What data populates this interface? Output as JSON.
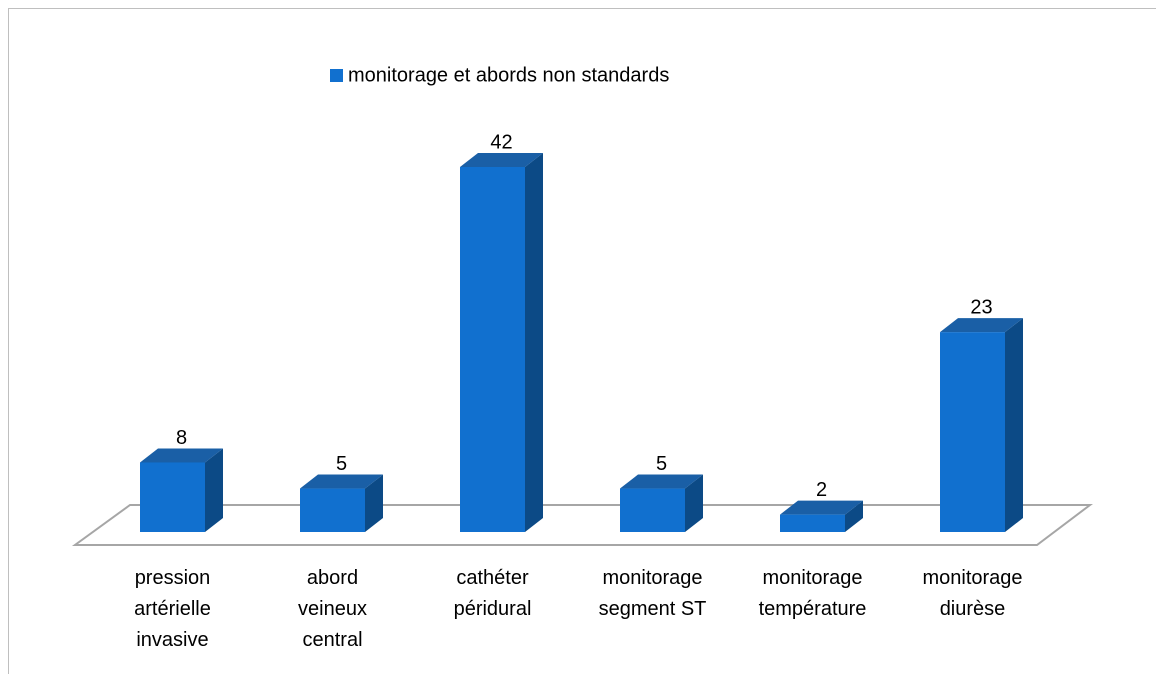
{
  "chart_data": {
    "type": "bar3d",
    "categories": [
      "pression\nartérielle\ninvasive",
      "abord\nveineux\ncentral",
      "cathéter\npéridural",
      "monitorage\nsegment ST",
      "monitorage\ntempérature",
      "monitorage\ndiurèse"
    ],
    "series": [
      {
        "name": "monitorage et abords non standards",
        "color": "#1170cf",
        "values": [
          8,
          5,
          42,
          5,
          2,
          23
        ]
      }
    ],
    "legend": "top"
  }
}
